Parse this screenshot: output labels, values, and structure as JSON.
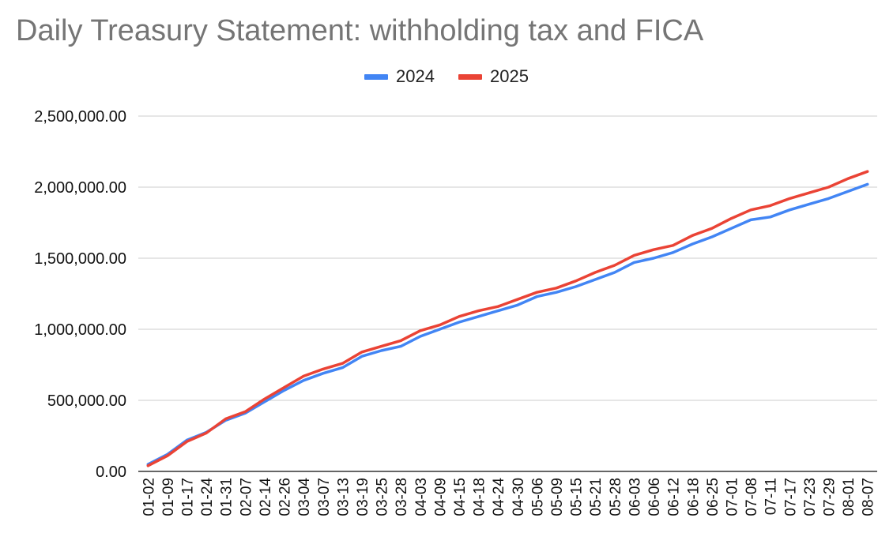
{
  "chart_data": {
    "type": "line",
    "title": "Daily Treasury Statement: withholding tax and FICA",
    "xlabel": "",
    "ylabel": "",
    "ylim": [
      0,
      2500000
    ],
    "yticks": [
      "0.00",
      "500,000.00",
      "1,000,000.00",
      "1,500,000.00",
      "2,000,000.00",
      "2,500,000.00"
    ],
    "ytick_values": [
      0,
      500000,
      1000000,
      1500000,
      2000000,
      2500000
    ],
    "categories": [
      "01-02",
      "01-09",
      "01-17",
      "01-24",
      "01-31",
      "02-07",
      "02-14",
      "02-26",
      "03-04",
      "03-07",
      "03-13",
      "03-19",
      "03-25",
      "03-28",
      "04-03",
      "04-09",
      "04-15",
      "04-18",
      "04-24",
      "04-30",
      "05-06",
      "05-09",
      "05-15",
      "05-21",
      "05-28",
      "06-03",
      "06-06",
      "06-12",
      "06-18",
      "06-25",
      "07-01",
      "07-08",
      "07-11",
      "07-17",
      "07-23",
      "07-29",
      "08-01",
      "08-07"
    ],
    "grid": true,
    "legend_position": "top",
    "series": [
      {
        "name": "2024",
        "color": "#4285f4",
        "values": [
          50000,
          120000,
          220000,
          275000,
          360000,
          410000,
          490000,
          570000,
          640000,
          690000,
          730000,
          810000,
          850000,
          880000,
          950000,
          1000000,
          1050000,
          1090000,
          1130000,
          1170000,
          1230000,
          1260000,
          1300000,
          1350000,
          1400000,
          1470000,
          1500000,
          1540000,
          1600000,
          1650000,
          1710000,
          1770000,
          1790000,
          1840000,
          1880000,
          1920000,
          1970000,
          2020000
        ]
      },
      {
        "name": "2025",
        "color": "#ea4335",
        "values": [
          40000,
          110000,
          210000,
          270000,
          370000,
          420000,
          510000,
          590000,
          670000,
          720000,
          760000,
          840000,
          880000,
          920000,
          990000,
          1030000,
          1090000,
          1130000,
          1160000,
          1210000,
          1260000,
          1290000,
          1340000,
          1400000,
          1450000,
          1520000,
          1560000,
          1590000,
          1660000,
          1710000,
          1780000,
          1840000,
          1870000,
          1920000,
          1960000,
          2000000,
          2060000,
          2110000
        ]
      }
    ]
  }
}
